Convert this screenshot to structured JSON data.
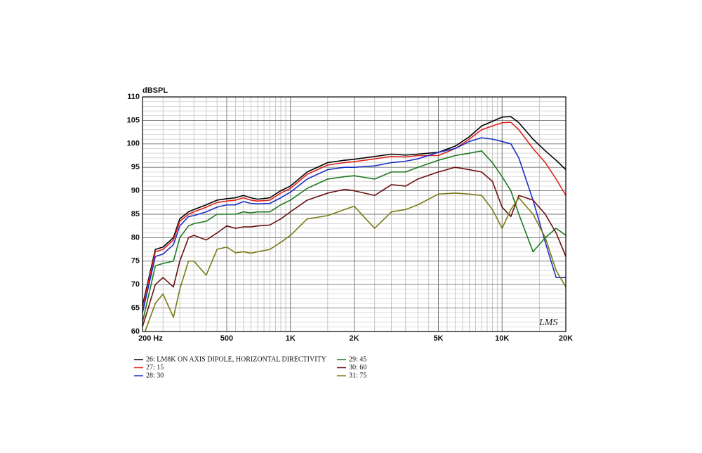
{
  "chart_data": {
    "type": "line",
    "xscale": "log",
    "grid": true,
    "y_label": "dBSPL",
    "annotation": "LMS",
    "x": [
      200,
      230,
      250,
      280,
      300,
      330,
      350,
      400,
      450,
      500,
      550,
      600,
      650,
      700,
      800,
      900,
      1000,
      1200,
      1500,
      1800,
      2000,
      2500,
      3000,
      3500,
      4000,
      5000,
      6000,
      7000,
      8000,
      9000,
      10000,
      11000,
      12000,
      14000,
      16000,
      18000,
      20000
    ],
    "xlim": [
      200,
      20000
    ],
    "xticks": [
      {
        "value": 200,
        "label": "200  Hz"
      },
      500,
      {
        "value": 1000,
        "label": "1K"
      },
      {
        "value": 2000,
        "label": "2K"
      },
      {
        "value": 5000,
        "label": "5K"
      },
      {
        "value": 10000,
        "label": "10K"
      },
      {
        "value": 20000,
        "label": "20K"
      }
    ],
    "ylim": [
      60,
      110
    ],
    "yticks": [
      60,
      65,
      70,
      75,
      80,
      85,
      90,
      95,
      100,
      105,
      110
    ],
    "series": [
      {
        "name": "26: LM8K ON AXIS DIPOLE, HORIZONTAL DIRECTIVITY",
        "color": "#000000",
        "values": [
          65.5,
          77.5,
          78,
          80,
          84,
          85.5,
          86,
          87,
          88,
          88.3,
          88.5,
          89,
          88.5,
          88.2,
          88.5,
          90,
          91,
          94,
          96,
          96.5,
          96.7,
          97.3,
          97.8,
          97.6,
          97.8,
          98.2,
          99.5,
          101.5,
          103.8,
          104.8,
          105.7,
          105.8,
          104.5,
          101,
          98.5,
          96.5,
          94.5
        ]
      },
      {
        "name": "27: 15",
        "color": "#e0201c",
        "values": [
          65,
          77,
          77.5,
          79.5,
          83.5,
          85,
          85.5,
          86.5,
          87.5,
          87.8,
          88,
          88.5,
          88,
          87.8,
          88,
          89.5,
          90.5,
          93.5,
          95.5,
          96,
          96.2,
          96.8,
          97.3,
          97.2,
          97.5,
          97.5,
          99,
          101,
          103,
          103.8,
          104.5,
          104.6,
          103,
          99,
          96,
          92.5,
          89
        ]
      },
      {
        "name": "28: 30",
        "color": "#1d2fc4",
        "values": [
          64,
          76,
          76.5,
          78.5,
          82.5,
          84.5,
          84.7,
          85.5,
          86.5,
          87,
          87,
          87.7,
          87.3,
          87.2,
          87.3,
          88.5,
          89.7,
          92.5,
          94.5,
          95,
          95,
          95.3,
          96,
          96.3,
          96.8,
          98.2,
          99,
          100.5,
          101.3,
          101,
          100.5,
          100,
          97,
          88,
          79,
          71.5,
          71.5
        ]
      },
      {
        "name": "29: 45",
        "color": "#1e7a1e",
        "values": [
          62,
          74,
          74.5,
          75,
          80,
          82.5,
          83,
          83.5,
          85,
          85,
          85,
          85.5,
          85.3,
          85.5,
          85.5,
          87,
          88,
          90.5,
          92.5,
          93,
          93.2,
          92.5,
          94,
          94,
          95,
          96.5,
          97.5,
          98,
          98.5,
          96,
          93,
          90,
          85,
          77,
          80,
          82,
          80.5
        ]
      },
      {
        "name": "30: 60",
        "color": "#6b0f0f",
        "values": [
          61,
          70,
          71.5,
          69.5,
          75,
          80,
          80.5,
          79.5,
          81,
          82.5,
          82,
          82.3,
          82.3,
          82.5,
          82.7,
          84,
          85.5,
          88,
          89.5,
          90.3,
          90,
          89,
          91.3,
          91,
          92.5,
          94,
          95,
          94.5,
          94,
          92,
          86.5,
          84.5,
          89,
          88,
          85,
          81,
          76
        ]
      },
      {
        "name": "31: 75",
        "color": "#7a7a16",
        "values": [
          58.5,
          66,
          68,
          63,
          69,
          75,
          75,
          72,
          77.5,
          78,
          76.8,
          77,
          76.7,
          77,
          77.5,
          79,
          80.5,
          84,
          84.7,
          86,
          86.7,
          82,
          85.5,
          86,
          87,
          89.3,
          89.5,
          89.3,
          89,
          86,
          82,
          86,
          88.5,
          85,
          80,
          73,
          69.5
        ]
      }
    ]
  }
}
